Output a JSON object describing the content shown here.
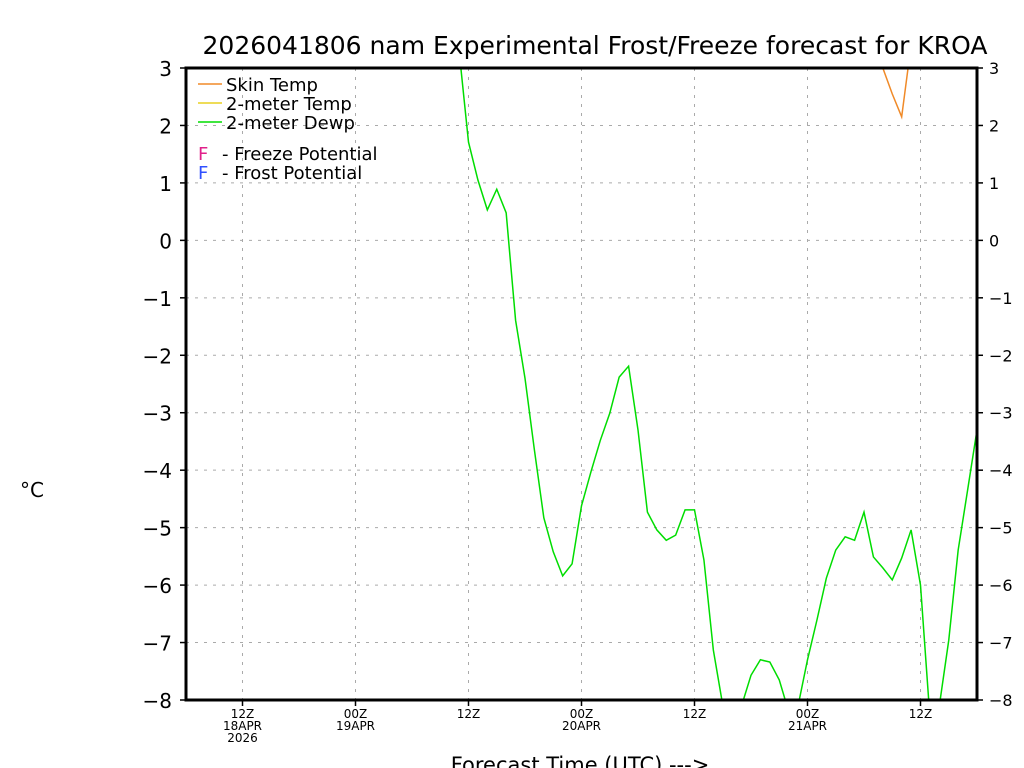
{
  "chart_data": {
    "type": "line",
    "title": "2026041806 nam Experimental Frost/Freeze forecast for KROA",
    "xlabel": "Forecast Time (UTC) --->",
    "ylabel": "°C",
    "xlim_hours": [
      0,
      84
    ],
    "ylim": [
      -8,
      3
    ],
    "yticks": [
      3,
      2,
      1,
      0,
      -1,
      -2,
      -3,
      -4,
      -5,
      -6,
      -7,
      -8
    ],
    "ytick_labels": [
      "3",
      "2",
      "1",
      "0",
      "−1",
      "−2",
      "−3",
      "−4",
      "−5",
      "−6",
      "−7",
      "−8"
    ],
    "grid": true,
    "xticks": [
      {
        "hour": 6,
        "lines": [
          "12Z",
          "18APR",
          "2026"
        ]
      },
      {
        "hour": 18,
        "lines": [
          "00Z",
          "19APR"
        ]
      },
      {
        "hour": 30,
        "lines": [
          "12Z"
        ]
      },
      {
        "hour": 42,
        "lines": [
          "00Z",
          "20APR"
        ]
      },
      {
        "hour": 54,
        "lines": [
          "12Z"
        ]
      },
      {
        "hour": 66,
        "lines": [
          "00Z",
          "21APR"
        ]
      },
      {
        "hour": 78,
        "lines": [
          "12Z"
        ]
      }
    ],
    "legend": {
      "placement": "top-left",
      "series_labels": [
        "Skin Temp",
        "2-meter Temp",
        "2-meter Dewp"
      ],
      "markers": [
        {
          "symbol": "F",
          "text": "- Freeze Potential",
          "color": "#e0208a"
        },
        {
          "symbol": "F",
          "text": "- Frost Potential",
          "color": "#3050ff"
        }
      ]
    },
    "series": [
      {
        "name": "Skin Temp",
        "color": "#f08a28",
        "start_hour": 73,
        "values": [
          3.6,
          3.0,
          2.55,
          2.15,
          3.4
        ]
      },
      {
        "name": "2-meter Temp",
        "color": "#e8d020",
        "start_hour": 0,
        "values": []
      },
      {
        "name": "2-meter Dewp",
        "color": "#00dd00",
        "start_hour": 29,
        "values": [
          3.3,
          1.71,
          1.05,
          0.53,
          0.89,
          0.48,
          -1.39,
          -2.4,
          -3.65,
          -4.83,
          -5.42,
          -5.84,
          -5.63,
          -4.62,
          -4.03,
          -3.48,
          -3.01,
          -2.38,
          -2.19,
          -3.3,
          -4.73,
          -5.04,
          -5.22,
          -5.13,
          -4.69,
          -4.69,
          -5.56,
          -7.13,
          -8.09,
          -8.5,
          -8.1,
          -7.57,
          -7.3,
          -7.34,
          -7.65,
          -8.2,
          -8.1,
          -7.3,
          -6.61,
          -5.88,
          -5.39,
          -5.16,
          -5.22,
          -4.73,
          -5.51,
          -5.7,
          -5.91,
          -5.53,
          -5.04,
          -6.0,
          -8.3,
          -8.1,
          -6.96,
          -5.39,
          -4.35,
          -3.3
        ]
      }
    ]
  }
}
